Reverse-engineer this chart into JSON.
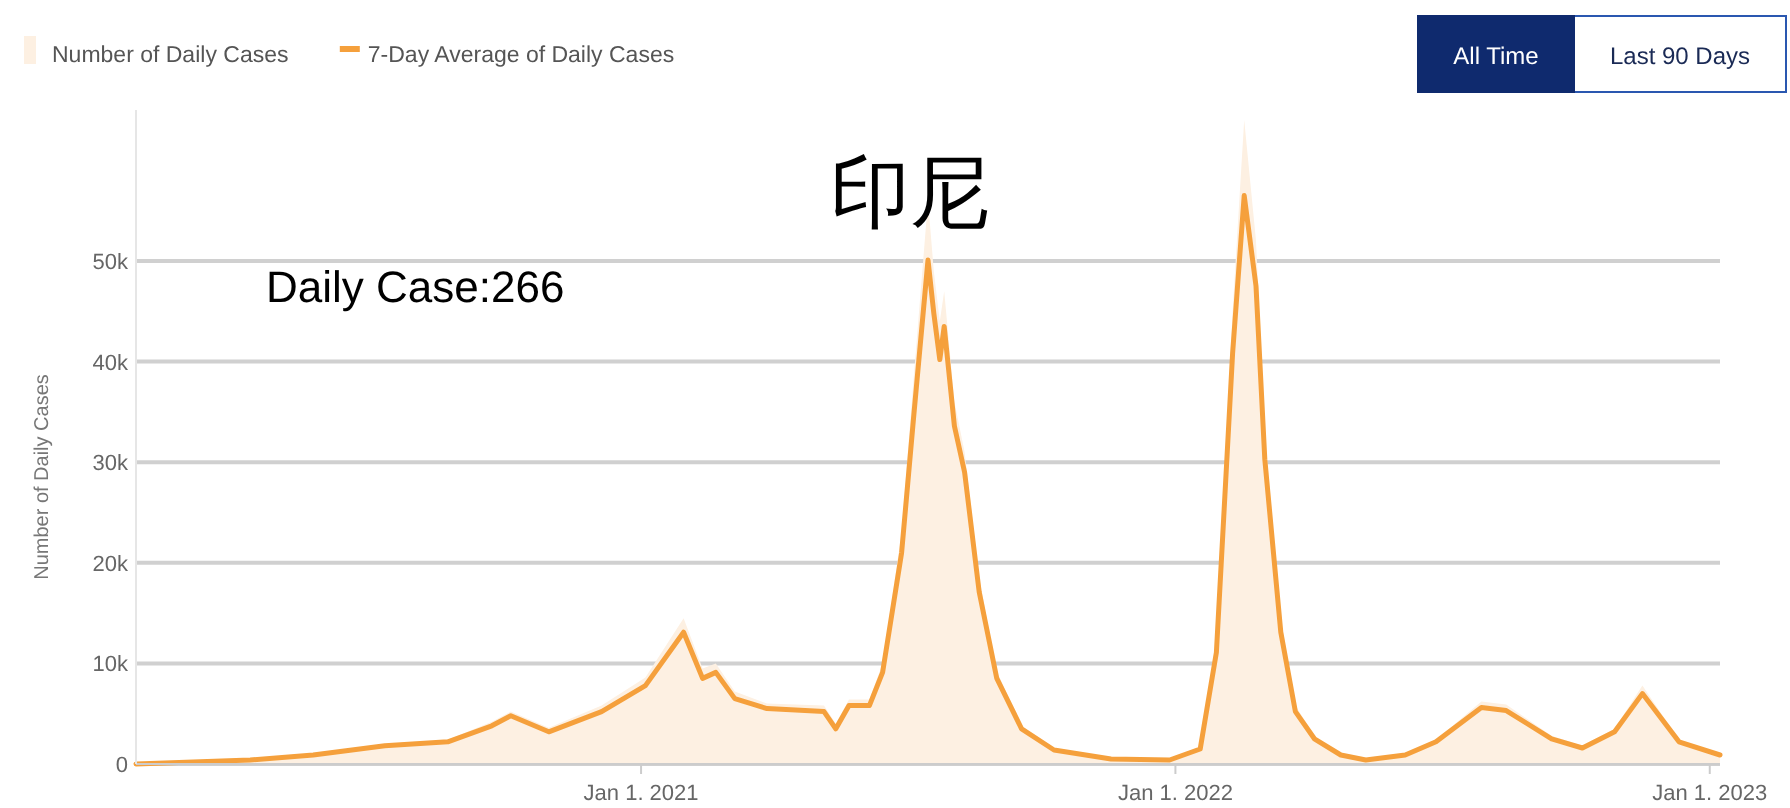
{
  "chart_data": {
    "type": "line",
    "title": "印尼",
    "ylabel": "Number of Daily Cases",
    "annotations": [
      "Daily Case:266",
      "All Time",
      "Last 90 Days"
    ],
    "xlim": [
      "2020-01-22",
      "2023-01-08"
    ],
    "ylim": [
      0,
      65000
    ],
    "xticks": [
      {
        "value": "2021-01-01",
        "label": "Jan 1. 2021"
      },
      {
        "value": "2022-01-01",
        "label": "Jan 1. 2022"
      },
      {
        "value": "2023-01-01",
        "label": "Jan 1. 2023"
      }
    ],
    "yticks": [
      0,
      {
        "value": 10000,
        "label": "10k"
      },
      {
        "value": 20000,
        "label": "20k"
      },
      {
        "value": 30000,
        "label": "30k"
      },
      {
        "value": 40000,
        "label": "40k"
      },
      {
        "value": 50000,
        "label": "50k"
      }
    ],
    "grid": "y",
    "legend": "top left",
    "series": [
      {
        "name": "Number of Daily Cases",
        "type": "area",
        "color": "#fdf0e2",
        "x": [
          "2020-01-22",
          "2020-04-09",
          "2020-05-22",
          "2020-07-10",
          "2020-08-22",
          "2020-09-21",
          "2020-10-04",
          "2020-10-30",
          "2020-12-05",
          "2021-01-04",
          "2021-01-30",
          "2021-02-12",
          "2021-02-21",
          "2021-03-06",
          "2021-03-28",
          "2021-05-06",
          "2021-05-14",
          "2021-05-23",
          "2021-06-06",
          "2021-06-15",
          "2021-06-28",
          "2021-07-06",
          "2021-07-16",
          "2021-07-20",
          "2021-07-24",
          "2021-07-27",
          "2021-08-03",
          "2021-08-10",
          "2021-08-20",
          "2021-09-01",
          "2021-09-18",
          "2021-10-10",
          "2021-11-18",
          "2021-12-28",
          "2022-01-18",
          "2022-01-29",
          "2022-02-09",
          "2022-02-17",
          "2022-02-25",
          "2022-03-03",
          "2022-03-14",
          "2022-03-24",
          "2022-04-06",
          "2022-04-24",
          "2022-05-11",
          "2022-06-07",
          "2022-06-28",
          "2022-07-29",
          "2022-08-15",
          "2022-09-15",
          "2022-10-06",
          "2022-10-28",
          "2022-11-16",
          "2022-12-11",
          "2023-01-08"
        ],
        "values": [
          0,
          500,
          1000,
          2000,
          2400,
          4200,
          5200,
          3600,
          5800,
          8600,
          14500,
          9500,
          10000,
          7200,
          6000,
          5800,
          4000,
          6400,
          6400,
          10000,
          23000,
          38000,
          56000,
          49000,
          44000,
          47000,
          36000,
          31000,
          18500,
          9200,
          3800,
          1500,
          600,
          500,
          1700,
          12500,
          45000,
          64000,
          52000,
          33000,
          14500,
          5800,
          2800,
          1000,
          500,
          1000,
          2400,
          6200,
          5900,
          2800,
          1800,
          3500,
          7800,
          2400,
          1000
        ]
      },
      {
        "name": "7-Day Average of Daily Cases",
        "color": "#f5a03c",
        "x": [
          "2020-01-22",
          "2020-04-09",
          "2020-05-22",
          "2020-07-10",
          "2020-08-22",
          "2020-09-21",
          "2020-10-04",
          "2020-10-30",
          "2020-12-05",
          "2021-01-04",
          "2021-01-30",
          "2021-02-12",
          "2021-02-21",
          "2021-03-06",
          "2021-03-28",
          "2021-05-06",
          "2021-05-14",
          "2021-05-23",
          "2021-06-06",
          "2021-06-15",
          "2021-06-28",
          "2021-07-06",
          "2021-07-16",
          "2021-07-20",
          "2021-07-24",
          "2021-07-27",
          "2021-08-03",
          "2021-08-10",
          "2021-08-20",
          "2021-09-01",
          "2021-09-18",
          "2021-10-10",
          "2021-11-18",
          "2021-12-28",
          "2022-01-18",
          "2022-01-29",
          "2022-02-09",
          "2022-02-17",
          "2022-02-25",
          "2022-03-03",
          "2022-03-14",
          "2022-03-24",
          "2022-04-06",
          "2022-04-24",
          "2022-05-11",
          "2022-06-07",
          "2022-06-28",
          "2022-07-29",
          "2022-08-15",
          "2022-09-15",
          "2022-10-06",
          "2022-10-28",
          "2022-11-16",
          "2022-12-11",
          "2023-01-08"
        ],
        "values": [
          0,
          400,
          900,
          1800,
          2200,
          3800,
          4800,
          3200,
          5200,
          7800,
          13100,
          8500,
          9100,
          6500,
          5500,
          5200,
          3500,
          5800,
          5800,
          9100,
          21000,
          34200,
          50100,
          44800,
          40200,
          43500,
          33600,
          29000,
          17100,
          8500,
          3500,
          1400,
          500,
          400,
          1500,
          11100,
          40800,
          56500,
          47500,
          30300,
          13100,
          5200,
          2500,
          900,
          400,
          900,
          2200,
          5600,
          5300,
          2500,
          1600,
          3200,
          7000,
          2200,
          900
        ]
      }
    ]
  }
}
